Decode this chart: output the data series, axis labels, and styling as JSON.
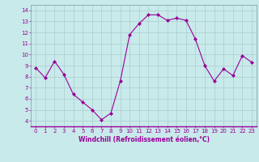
{
  "x": [
    0,
    1,
    2,
    3,
    4,
    5,
    6,
    7,
    8,
    9,
    10,
    11,
    12,
    13,
    14,
    15,
    16,
    17,
    18,
    19,
    20,
    21,
    22,
    23
  ],
  "y": [
    8.8,
    7.9,
    9.4,
    8.2,
    6.4,
    5.7,
    5.0,
    4.1,
    4.7,
    7.6,
    11.8,
    12.8,
    13.6,
    13.6,
    13.1,
    13.3,
    13.1,
    11.4,
    9.0,
    7.6,
    8.7,
    8.1,
    9.9,
    9.3
  ],
  "line_color": "#990099",
  "marker": "D",
  "markersize": 2.0,
  "linewidth": 0.8,
  "xlabel": "Windchill (Refroidissement éolien,°C)",
  "xlabel_fontsize": 5.5,
  "ylabel_ticks": [
    4,
    5,
    6,
    7,
    8,
    9,
    10,
    11,
    12,
    13,
    14
  ],
  "xlim": [
    -0.5,
    23.5
  ],
  "ylim": [
    3.5,
    14.5
  ],
  "background_color": "#c8eaea",
  "grid_color": "#aacccc",
  "tick_fontsize": 5.0,
  "tick_color": "#990099",
  "label_color": "#990099",
  "spine_color": "#7799aa"
}
